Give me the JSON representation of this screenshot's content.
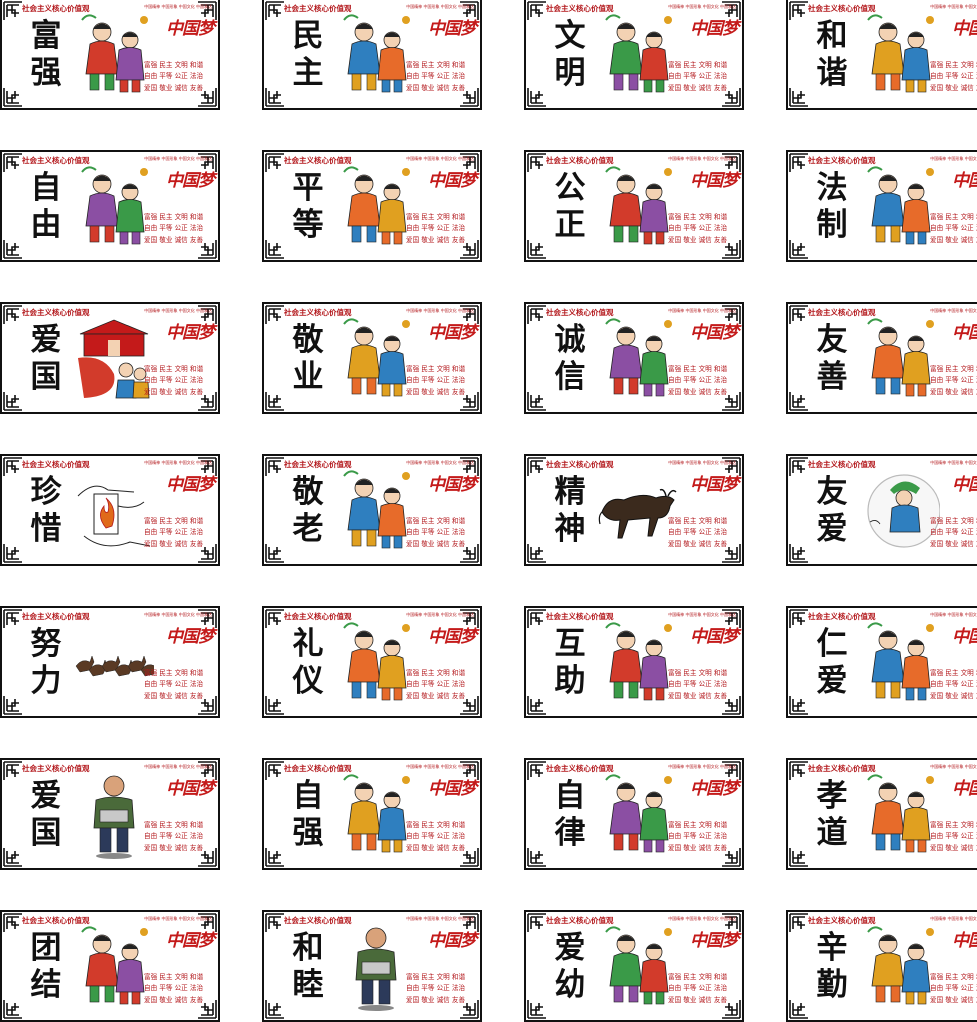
{
  "card_header": "社会主义核心价值观",
  "card_topline": "中国精神 中国形象 中国文化 中国表达",
  "card_slogan": "中国梦",
  "card_values": [
    "富强 民主 文明 和谐",
    "自由 平等 公正 法治",
    "爱国 敬业 诚信 友善"
  ],
  "cards": [
    {
      "title": "富强",
      "art_icon": "figures-icon"
    },
    {
      "title": "民主",
      "art_icon": "figures-icon"
    },
    {
      "title": "文明",
      "art_icon": "figures-icon"
    },
    {
      "title": "和谐",
      "art_icon": "figures-icon"
    },
    {
      "title": "自由",
      "art_icon": "figures-icon"
    },
    {
      "title": "平等",
      "art_icon": "figures-icon"
    },
    {
      "title": "公正",
      "art_icon": "figures-icon"
    },
    {
      "title": "法制",
      "art_icon": "figures-icon"
    },
    {
      "title": "爱国",
      "art_icon": "gate-icon"
    },
    {
      "title": "敬业",
      "art_icon": "figures-icon"
    },
    {
      "title": "诚信",
      "art_icon": "figures-icon"
    },
    {
      "title": "友善",
      "art_icon": "figures-icon"
    },
    {
      "title": "珍惜",
      "art_icon": "hands-icon"
    },
    {
      "title": "敬老",
      "art_icon": "figures-icon"
    },
    {
      "title": "精神",
      "art_icon": "ox-icon"
    },
    {
      "title": "友爱",
      "art_icon": "plate-icon"
    },
    {
      "title": "努力",
      "art_icon": "horses-icon"
    },
    {
      "title": "礼仪",
      "art_icon": "figures-icon"
    },
    {
      "title": "互助",
      "art_icon": "figures-icon"
    },
    {
      "title": "仁爱",
      "art_icon": "figures-icon"
    },
    {
      "title": "爱国",
      "art_icon": "figure-icon"
    },
    {
      "title": "自强",
      "art_icon": "figures-icon"
    },
    {
      "title": "自律",
      "art_icon": "figures-icon"
    },
    {
      "title": "孝道",
      "art_icon": "figures-icon"
    },
    {
      "title": "团结",
      "art_icon": "figures-icon"
    },
    {
      "title": "和睦",
      "art_icon": "figure-icon"
    },
    {
      "title": "爱幼",
      "art_icon": "figures-icon"
    },
    {
      "title": "辛勤",
      "art_icon": "figures-icon"
    }
  ],
  "colors": {
    "accent_red": "#b3181c",
    "border": "#111111"
  }
}
